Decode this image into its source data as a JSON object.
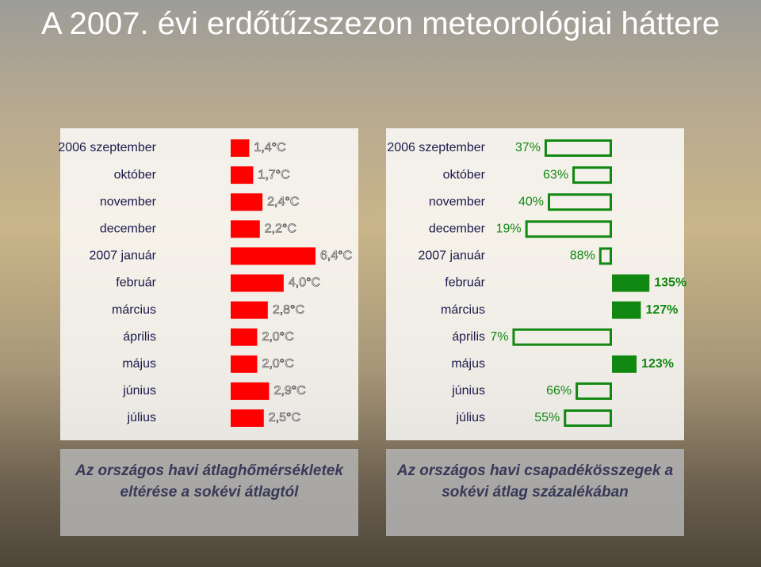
{
  "title": "A 2007. évi erdőtűzszezon meteorológiai háttere",
  "chart_data": [
    {
      "type": "hbar",
      "caption": "Az országos havi átlaghőmérsékletek eltérése a sokévi átlagtól",
      "categories": [
        "2006 szeptember",
        "október",
        "november",
        "december",
        "2007 január",
        "február",
        "március",
        "április",
        "május",
        "június",
        "július"
      ],
      "values": [
        1.4,
        1.7,
        2.4,
        2.2,
        6.4,
        4.0,
        2.8,
        2.0,
        2.0,
        2.9,
        2.5
      ],
      "value_labels": [
        "1,4°C",
        "1,7°C",
        "2,4°C",
        "2,2°C",
        "6,4°C",
        "4,0°C",
        "2,8°C",
        "2,0°C",
        "2,0°C",
        "2,9°C",
        "2,5°C"
      ],
      "color": "#ff0000",
      "xlim": [
        0,
        6.4
      ]
    },
    {
      "type": "hbar",
      "caption": "Az országos havi csapadékösszegek a sokévi átlag százalékában",
      "categories": [
        "2006 szeptember",
        "október",
        "november",
        "december",
        "2007 január",
        "február",
        "március",
        "április",
        "május",
        "június",
        "július"
      ],
      "values": [
        37,
        63,
        40,
        19,
        88,
        135,
        127,
        7,
        123,
        66,
        55
      ],
      "value_labels": [
        "37%",
        "63%",
        "40%",
        "19%",
        "88%",
        "135%",
        "127%",
        "7%",
        "123%",
        "66%",
        "55%"
      ],
      "color": "#118811",
      "xlim": [
        0,
        150
      ],
      "baseline": 100
    }
  ]
}
